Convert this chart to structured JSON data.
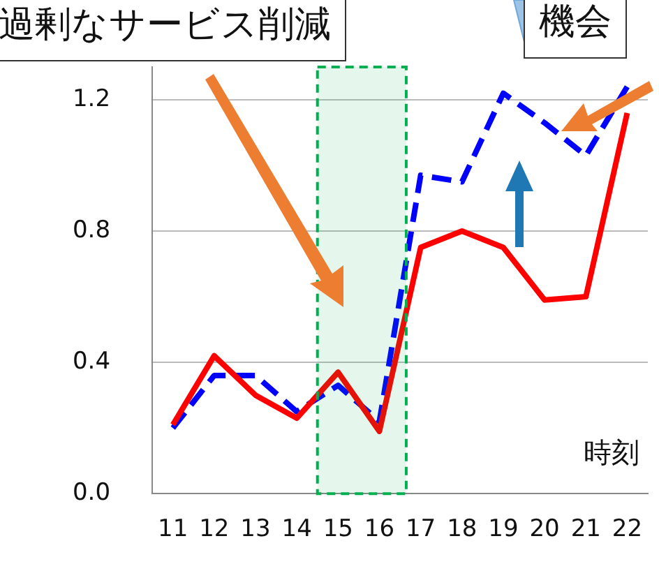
{
  "chart_data": {
    "type": "line",
    "annotations": [
      "過剰なサービス削減",
      "機会"
    ],
    "xlabel": "時刻",
    "x": [
      11,
      12,
      13,
      14,
      15,
      16,
      17,
      18,
      19,
      20,
      21,
      22
    ],
    "xlim": [
      10.5,
      22.5
    ],
    "xticks": [
      11,
      12,
      13,
      14,
      15,
      16,
      17,
      18,
      19,
      20,
      21,
      22
    ],
    "ylim": [
      0,
      1.3
    ],
    "yticks": [
      {
        "value": 0,
        "label": "0.0"
      },
      {
        "value": 0.4,
        "label": "0.4"
      },
      {
        "value": 0.8,
        "label": "0.8"
      },
      {
        "value": 1.2,
        "label": "1.2"
      }
    ],
    "series": [
      {
        "color": "#ff0000",
        "line_style": "solid",
        "values": [
          0.21,
          0.42,
          0.3,
          0.23,
          0.37,
          0.19,
          0.75,
          0.8,
          0.75,
          0.59,
          0.6,
          1.16
        ]
      },
      {
        "color": "#0000ff",
        "line_style": "dashed",
        "values": [
          0.2,
          0.36,
          0.36,
          0.25,
          0.33,
          0.22,
          0.97,
          0.95,
          1.22,
          1.13,
          1.03,
          1.24
        ]
      }
    ],
    "bands": [
      {
        "axis": "x",
        "from": 14.5,
        "to": 16.65,
        "color": "#00b050"
      }
    ],
    "grid": "y",
    "legend": false,
    "marker": "none"
  }
}
